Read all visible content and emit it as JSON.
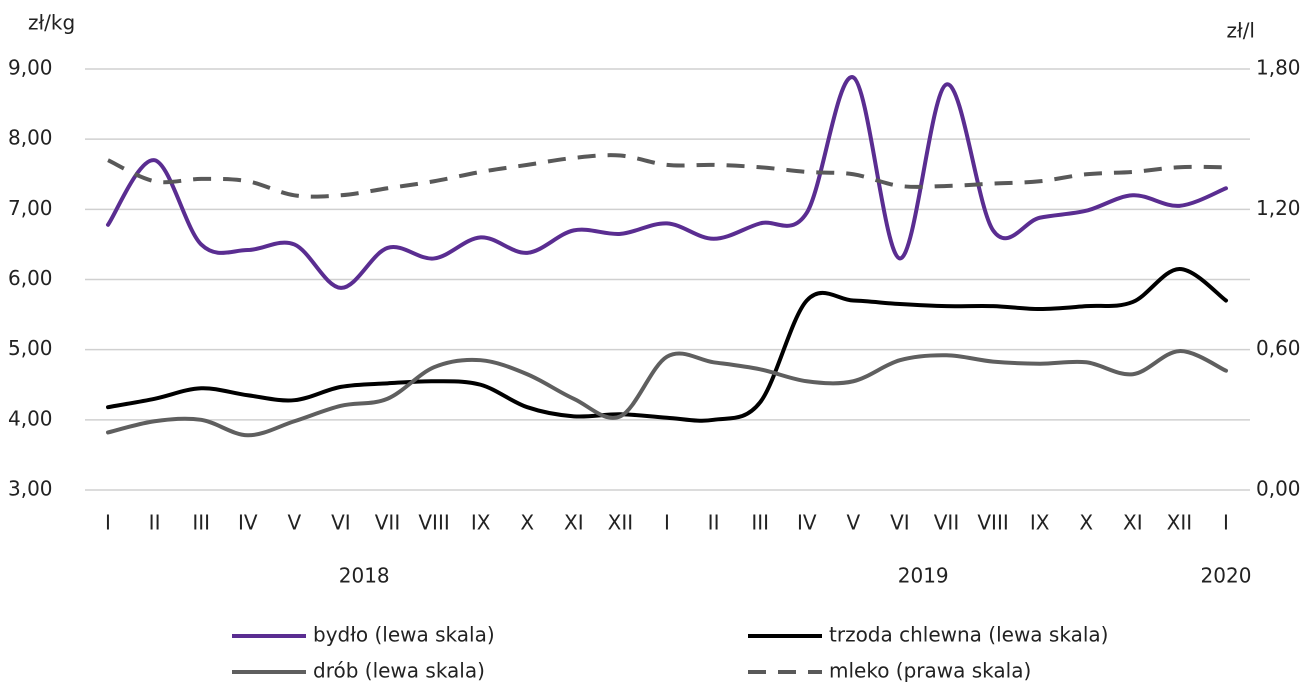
{
  "chart_data": {
    "type": "line",
    "y_label": "zł/kg",
    "y2_label": "zł/l",
    "categories": [
      "I",
      "II",
      "III",
      "IV",
      "V",
      "VI",
      "VII",
      "VIII",
      "IX",
      "X",
      "XI",
      "XII",
      "I",
      "II",
      "III",
      "IV",
      "V",
      "VI",
      "VII",
      "VIII",
      "IX",
      "X",
      "XI",
      "XII",
      "I"
    ],
    "years": [
      "2018",
      "2019",
      "2020"
    ],
    "ylim": [
      3,
      9
    ],
    "yticks": [
      {
        "value": 3,
        "label": "3,00"
      },
      {
        "value": 4,
        "label": "4,00"
      },
      {
        "value": 5,
        "label": "5,00"
      },
      {
        "value": 6,
        "label": "6,00"
      },
      {
        "value": 7,
        "label": "7,00"
      },
      {
        "value": 8,
        "label": "8,00"
      },
      {
        "value": 9,
        "label": "9,00"
      }
    ],
    "y2lim": [
      0,
      1.8
    ],
    "y2ticks": [
      {
        "value": 0,
        "label": "0,00"
      },
      {
        "value": 0.6,
        "label": "0,60"
      },
      {
        "value": 1.2,
        "label": "1,20"
      },
      {
        "value": 1.8,
        "label": "1,80"
      }
    ],
    "grid": true,
    "series": [
      {
        "name": "bydło (lewa skala)",
        "color": "#5a2d91",
        "values": [
          6.78,
          7.7,
          6.5,
          6.42,
          6.5,
          5.88,
          6.45,
          6.3,
          6.6,
          6.38,
          6.7,
          6.65,
          6.8,
          6.58,
          6.8,
          6.95,
          8.88,
          6.3,
          8.78,
          6.7,
          6.88,
          6.98,
          7.2,
          7.05,
          7.3
        ]
      },
      {
        "name": "trzoda chlewna (lewa skala)",
        "color": "#000000",
        "values": [
          4.18,
          4.3,
          4.45,
          4.35,
          4.28,
          4.47,
          4.52,
          4.55,
          4.5,
          4.18,
          4.05,
          4.08,
          4.03,
          4.0,
          4.25,
          5.7,
          5.7,
          5.65,
          5.62,
          5.62,
          5.58,
          5.62,
          5.68,
          6.15,
          5.7
        ]
      },
      {
        "name": "drób (lewa skala)",
        "color": "#5f5f5f",
        "values": [
          3.82,
          3.98,
          4.0,
          3.78,
          3.98,
          4.2,
          4.3,
          4.75,
          4.85,
          4.65,
          4.3,
          4.05,
          4.9,
          4.82,
          4.72,
          4.55,
          4.55,
          4.85,
          4.92,
          4.83,
          4.8,
          4.82,
          4.65,
          4.98,
          4.7
        ]
      },
      {
        "name": "mleko (prawa skala)",
        "color": "#595959",
        "dashed": true,
        "axis": "y2",
        "values": [
          1.41,
          1.32,
          1.33,
          1.32,
          1.26,
          1.26,
          1.29,
          1.32,
          1.36,
          1.39,
          1.42,
          1.43,
          1.39,
          1.39,
          1.38,
          1.36,
          1.35,
          1.3,
          1.3,
          1.31,
          1.32,
          1.35,
          1.36,
          1.38,
          1.38
        ]
      }
    ]
  }
}
